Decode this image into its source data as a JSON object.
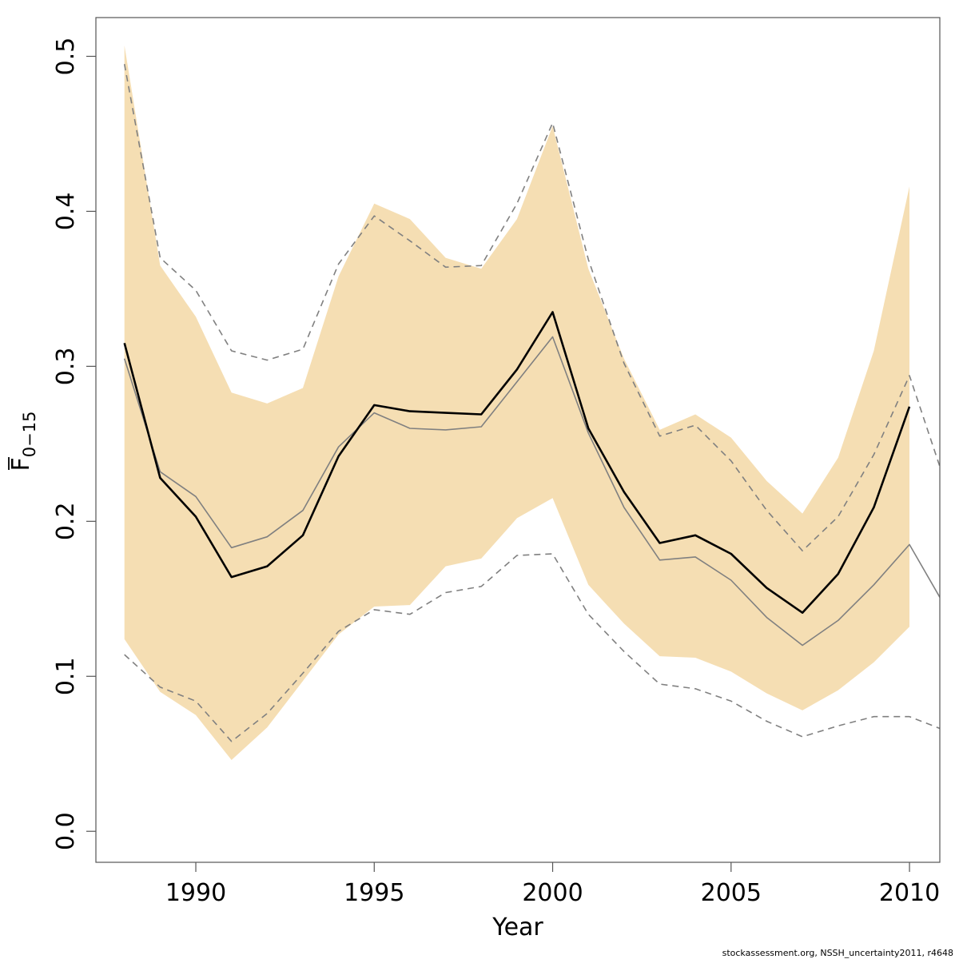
{
  "chart_data": {
    "type": "line",
    "xlabel": "Year",
    "ylabel_main": "F",
    "ylabel_sub": "0−15",
    "xlim": [
      1987.2,
      2010.85
    ],
    "ylim": [
      -0.02,
      0.525
    ],
    "x_ticks": [
      1990,
      1995,
      2000,
      2005,
      2010
    ],
    "y_ticks": [
      "0.0",
      "0.1",
      "0.2",
      "0.3",
      "0.4",
      "0.5"
    ],
    "grid": false,
    "colors": {
      "band": "#f5deb3",
      "main": "#000000",
      "secondary": "#808080"
    },
    "band": {
      "x": [
        1988,
        1989,
        1990,
        1991,
        1992,
        1993,
        1994,
        1995,
        1996,
        1997,
        1998,
        1999,
        2000,
        2001,
        2002,
        2003,
        2004,
        2005,
        2006,
        2007,
        2008,
        2009,
        2010
      ],
      "upper": [
        0.507,
        0.365,
        0.332,
        0.283,
        0.276,
        0.286,
        0.358,
        0.405,
        0.395,
        0.37,
        0.363,
        0.395,
        0.455,
        0.363,
        0.305,
        0.259,
        0.269,
        0.254,
        0.226,
        0.205,
        0.241,
        0.31,
        0.416
      ],
      "lower": [
        0.124,
        0.09,
        0.075,
        0.046,
        0.067,
        0.097,
        0.127,
        0.145,
        0.146,
        0.171,
        0.176,
        0.202,
        0.215,
        0.159,
        0.134,
        0.113,
        0.112,
        0.103,
        0.089,
        0.078,
        0.091,
        0.109,
        0.132
      ]
    },
    "series": [
      {
        "role": "main",
        "x": [
          1988,
          1989,
          1990,
          1991,
          1992,
          1993,
          1994,
          1995,
          1996,
          1997,
          1998,
          1999,
          2000,
          2001,
          2002,
          2003,
          2004,
          2005,
          2006,
          2007,
          2008,
          2009,
          2010
        ],
        "values": [
          0.315,
          0.228,
          0.203,
          0.164,
          0.171,
          0.191,
          0.242,
          0.275,
          0.271,
          0.27,
          0.269,
          0.298,
          0.335,
          0.26,
          0.219,
          0.186,
          0.191,
          0.179,
          0.157,
          0.141,
          0.166,
          0.209,
          0.274
        ]
      },
      {
        "role": "secondary",
        "x": [
          1988,
          1989,
          1990,
          1991,
          1992,
          1993,
          1994,
          1995,
          1996,
          1997,
          1998,
          1999,
          2000,
          2001,
          2002,
          2003,
          2004,
          2005,
          2006,
          2007,
          2008,
          2009,
          2010,
          2011
        ],
        "values": [
          0.305,
          0.232,
          0.216,
          0.183,
          0.19,
          0.207,
          0.248,
          0.27,
          0.26,
          0.259,
          0.261,
          0.29,
          0.319,
          0.257,
          0.209,
          0.175,
          0.177,
          0.162,
          0.138,
          0.12,
          0.136,
          0.159,
          0.185,
          0.145
        ]
      },
      {
        "role": "upper-dashed",
        "x": [
          1988,
          1989,
          1990,
          1991,
          1992,
          1993,
          1994,
          1995,
          1996,
          1997,
          1998,
          1999,
          2000,
          2001,
          2002,
          2003,
          2004,
          2005,
          2006,
          2007,
          2008,
          2009,
          2010,
          2011
        ],
        "values": [
          0.495,
          0.37,
          0.349,
          0.31,
          0.304,
          0.311,
          0.366,
          0.397,
          0.381,
          0.364,
          0.365,
          0.405,
          0.457,
          0.369,
          0.302,
          0.255,
          0.262,
          0.239,
          0.207,
          0.181,
          0.203,
          0.243,
          0.294,
          0.225
        ]
      },
      {
        "role": "lower-dashed",
        "x": [
          1988,
          1989,
          1990,
          1991,
          1992,
          1993,
          1994,
          1995,
          1996,
          1997,
          1998,
          1999,
          2000,
          2001,
          2002,
          2003,
          2004,
          2005,
          2006,
          2007,
          2008,
          2009,
          2010,
          2011
        ],
        "values": [
          0.114,
          0.093,
          0.084,
          0.058,
          0.076,
          0.102,
          0.129,
          0.143,
          0.14,
          0.154,
          0.158,
          0.178,
          0.179,
          0.14,
          0.116,
          0.095,
          0.092,
          0.084,
          0.071,
          0.061,
          0.068,
          0.074,
          0.074,
          0.065
        ]
      }
    ]
  },
  "footnote": "stockassessment.org, NSSH_uncertainty2011, r4648"
}
